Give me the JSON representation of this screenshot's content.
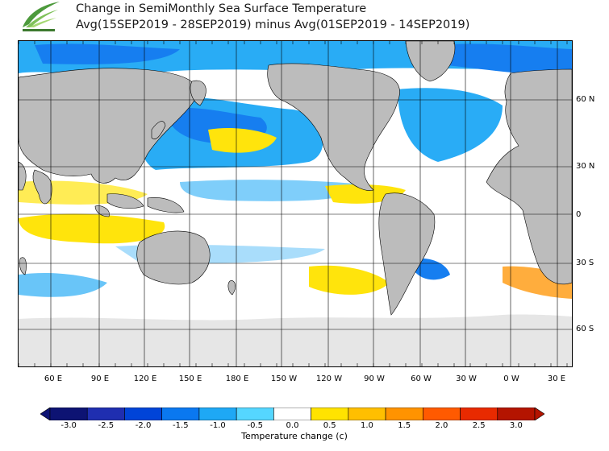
{
  "header": {
    "title_line1": "Change in SemiMonthly Sea Surface Temperature",
    "title_line2": "Avg(15SEP2019 - 28SEP2019) minus Avg(01SEP2019 - 14SEP2019)"
  },
  "map": {
    "lat_labels": [
      "60 N",
      "30 N",
      "0",
      "30 S",
      "60 S"
    ],
    "lon_labels": [
      "60 E",
      "90 E",
      "120 E",
      "150 E",
      "180 E",
      "150 W",
      "120 W",
      "90 W",
      "60 W",
      "30 W",
      "0 W",
      "30 E"
    ]
  },
  "colorbar": {
    "labels": [
      "-3.0",
      "-2.5",
      "-2.0",
      "-1.5",
      "-1.0",
      "-0.5",
      "0.0",
      "0.5",
      "1.0",
      "1.5",
      "2.0",
      "2.5",
      "3.0"
    ],
    "colors": [
      "#0d1373",
      "#1f2eb0",
      "#0044d8",
      "#0a78f0",
      "#1ea8f5",
      "#55d6ff",
      "#ffffff",
      "#ffe300",
      "#ffbf00",
      "#ff9300",
      "#ff5a00",
      "#e82a00",
      "#b41400"
    ],
    "title": "Temperature change  (c)"
  },
  "colors": {
    "land": "#bcbcbc",
    "ice": "#e6e6e6",
    "border": "#000000"
  }
}
